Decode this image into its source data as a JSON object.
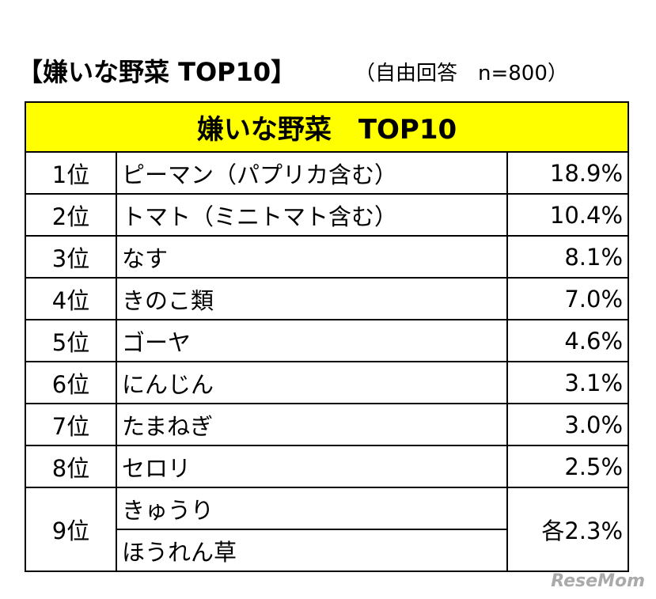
{
  "title": "【嫌いな野菜 TOP10】",
  "subtitle": "（自由回答　n=800）",
  "table": {
    "header": "嫌いな野菜　TOP10",
    "rows": [
      {
        "rank": "1位",
        "items": [
          "ピーマン（パプリカ含む）"
        ],
        "value": "18.9%"
      },
      {
        "rank": "2位",
        "items": [
          "トマト（ミニトマト含む）"
        ],
        "value": "10.4%"
      },
      {
        "rank": "3位",
        "items": [
          "なす"
        ],
        "value": "8.1%"
      },
      {
        "rank": "4位",
        "items": [
          "きのこ類"
        ],
        "value": "7.0%"
      },
      {
        "rank": "5位",
        "items": [
          "ゴーヤ"
        ],
        "value": "4.6%"
      },
      {
        "rank": "6位",
        "items": [
          "にんじん"
        ],
        "value": "3.1%"
      },
      {
        "rank": "7位",
        "items": [
          "たまねぎ"
        ],
        "value": "3.0%"
      },
      {
        "rank": "8位",
        "items": [
          "セロリ"
        ],
        "value": "2.5%"
      },
      {
        "rank": "9位",
        "items": [
          "きゅうり",
          "ほうれん草"
        ],
        "value": "各2.3%"
      }
    ]
  },
  "watermark": "ReseMom"
}
